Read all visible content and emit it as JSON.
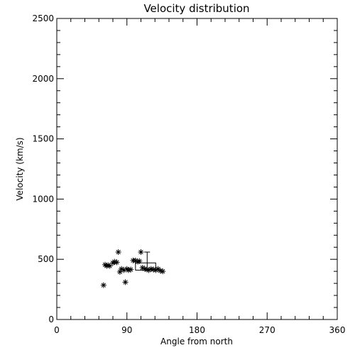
{
  "chart_data": {
    "type": "scatter",
    "title": "Velocity distribution",
    "xlabel": "Angle from north",
    "ylabel": "Velocity (km/s)",
    "xlim": [
      0,
      360
    ],
    "ylim": [
      0,
      2500
    ],
    "xticks": [
      0,
      90,
      180,
      270,
      360
    ],
    "yticks": [
      0,
      500,
      1000,
      1500,
      2000,
      2500
    ],
    "x_minor_step": 18,
    "y_minor_step": 100,
    "grid": false,
    "marker": "asterisk",
    "points": [
      {
        "x": 60,
        "y": 285
      },
      {
        "x": 62,
        "y": 455
      },
      {
        "x": 64,
        "y": 445
      },
      {
        "x": 66,
        "y": 450
      },
      {
        "x": 68,
        "y": 445
      },
      {
        "x": 72,
        "y": 470
      },
      {
        "x": 74,
        "y": 480
      },
      {
        "x": 77,
        "y": 475
      },
      {
        "x": 79,
        "y": 560
      },
      {
        "x": 81,
        "y": 395
      },
      {
        "x": 83,
        "y": 420
      },
      {
        "x": 86,
        "y": 410
      },
      {
        "x": 88,
        "y": 310
      },
      {
        "x": 90,
        "y": 420
      },
      {
        "x": 92,
        "y": 410
      },
      {
        "x": 95,
        "y": 415
      },
      {
        "x": 98,
        "y": 490
      },
      {
        "x": 101,
        "y": 490
      },
      {
        "x": 104,
        "y": 480
      },
      {
        "x": 106,
        "y": 485
      },
      {
        "x": 108,
        "y": 560
      },
      {
        "x": 110,
        "y": 430
      },
      {
        "x": 113,
        "y": 420
      },
      {
        "x": 116,
        "y": 415
      },
      {
        "x": 118,
        "y": 410
      },
      {
        "x": 121,
        "y": 420
      },
      {
        "x": 124,
        "y": 415
      },
      {
        "x": 127,
        "y": 410
      },
      {
        "x": 130,
        "y": 420
      },
      {
        "x": 133,
        "y": 405
      },
      {
        "x": 136,
        "y": 400
      }
    ],
    "annotation_box": {
      "x_range": [
        101,
        127
      ],
      "y_range": [
        410,
        470
      ]
    },
    "error_bar": {
      "x": 116,
      "y_range": [
        410,
        560
      ]
    }
  }
}
